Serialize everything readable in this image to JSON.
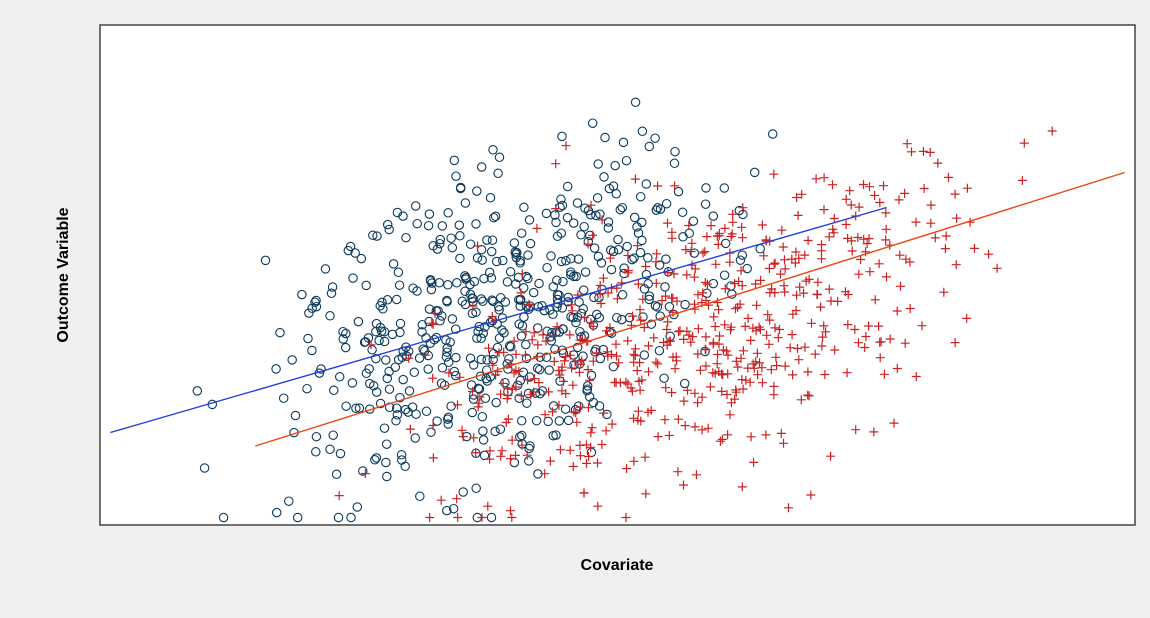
{
  "chart_data": {
    "type": "scatter",
    "title": "",
    "xlabel": "Covariate",
    "ylabel": "Outcome Variable",
    "xlim": [
      0,
      100
    ],
    "ylim": [
      0,
      100
    ],
    "grid": false,
    "legend": "none",
    "series": [
      {
        "marker": "circle",
        "color": "#0b3a5c",
        "n": 560,
        "x_range": [
          1,
          76
        ],
        "slope": 0.6,
        "intercept": 18,
        "noise_sd": 14
      },
      {
        "marker": "plus",
        "color": "#cc2222",
        "n": 560,
        "x_range": [
          15,
          100
        ],
        "slope": 0.65,
        "intercept": 2,
        "noise_sd": 13
      }
    ],
    "fit_lines": [
      {
        "color": "#2040e0",
        "x": [
          1,
          76
        ],
        "y": [
          18.5,
          63.5
        ]
      },
      {
        "color": "#ee4411",
        "x": [
          15,
          99
        ],
        "y": [
          15.8,
          70.5
        ]
      }
    ]
  }
}
